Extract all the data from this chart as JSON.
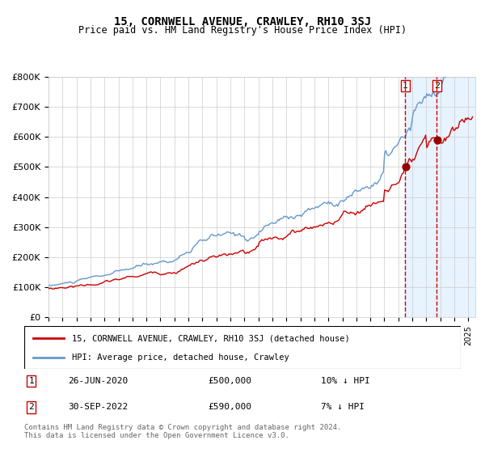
{
  "title": "15, CORNWELL AVENUE, CRAWLEY, RH10 3SJ",
  "subtitle": "Price paid vs. HM Land Registry's House Price Index (HPI)",
  "legend_line1": "15, CORNWELL AVENUE, CRAWLEY, RH10 3SJ (detached house)",
  "legend_line2": "HPI: Average price, detached house, Crawley",
  "annotation1_date": "26-JUN-2020",
  "annotation1_price": "£500,000",
  "annotation1_hpi": "10% ↓ HPI",
  "annotation2_date": "30-SEP-2022",
  "annotation2_price": "£590,000",
  "annotation2_hpi": "7% ↓ HPI",
  "footer": "Contains HM Land Registry data © Crown copyright and database right 2024.\nThis data is licensed under the Open Government Licence v3.0.",
  "hpi_color": "#6699cc",
  "price_color": "#cc0000",
  "marker_color": "#990000",
  "highlight_color": "#ddeeff",
  "dashed_color": "#cc0000",
  "ylim": [
    0,
    800000
  ],
  "yticks": [
    0,
    100000,
    200000,
    300000,
    400000,
    500000,
    600000,
    700000,
    800000
  ],
  "sale1_x": 2020.5,
  "sale1_y": 500000,
  "sale2_x": 2022.75,
  "sale2_y": 590000,
  "xmin": 1995,
  "xmax": 2025.5
}
